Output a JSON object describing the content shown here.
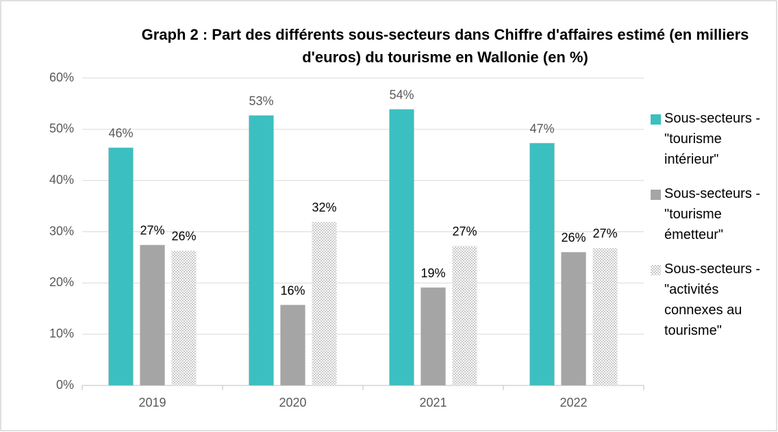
{
  "chart_data": {
    "type": "bar",
    "title": "Graph 2 : Part des différents sous-secteurs dans Chiffre d'affaires estimé (en milliers d'euros) du tourisme en Wallonie (en %)",
    "categories": [
      "2019",
      "2020",
      "2021",
      "2022"
    ],
    "series": [
      {
        "name": "Sous-secteurs - \"tourisme intérieur\"",
        "color": "#3cbfc0",
        "values": [
          46.4,
          52.7,
          53.9,
          47.3
        ],
        "value_labels": [
          "46%",
          "53%",
          "54%",
          "47%"
        ]
      },
      {
        "name": "Sous-secteurs - \"tourisme émetteur\"",
        "color": "#a5a5a5",
        "values": [
          27.4,
          15.7,
          19.1,
          26.0
        ],
        "value_labels": [
          "27%",
          "16%",
          "19%",
          "26%"
        ]
      },
      {
        "name": "Sous-secteurs - \"activités connexes au tourisme\"",
        "color": "#d0d0d0",
        "pattern": "dots",
        "values": [
          26.3,
          31.9,
          27.2,
          26.8
        ],
        "value_labels": [
          "26%",
          "32%",
          "27%",
          "27%"
        ]
      }
    ],
    "ylim": [
      0,
      60
    ],
    "yticks": [
      {
        "value": 0,
        "label": "0%"
      },
      {
        "value": 10,
        "label": "10%"
      },
      {
        "value": 20,
        "label": "20%"
      },
      {
        "value": 30,
        "label": "30%"
      },
      {
        "value": 40,
        "label": "40%"
      },
      {
        "value": 50,
        "label": "50%"
      },
      {
        "value": 60,
        "label": "60%"
      }
    ],
    "grid": true,
    "legend": "right"
  }
}
